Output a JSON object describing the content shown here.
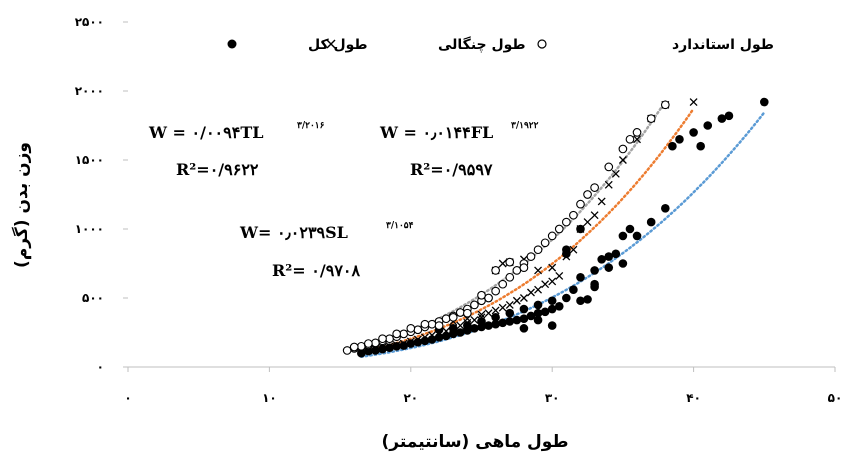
{
  "chart_data": {
    "type": "scatter",
    "xlabel": "طول ماهی (سانتیمتر)",
    "ylabel": "وزن بدن (گرم)",
    "xlim": [
      0,
      50
    ],
    "ylim": [
      0,
      2500
    ],
    "x_ticks": [
      0,
      10,
      20,
      30,
      40,
      50
    ],
    "y_ticks": [
      0,
      500,
      1000,
      1500,
      2000,
      2500
    ],
    "x_tick_labels": [
      "۰",
      "۱۰",
      "۲۰",
      "۳۰",
      "۴۰",
      "۵۰"
    ],
    "y_tick_labels": [
      "۰",
      "۵۰۰",
      "۱۰۰۰",
      "۱۵۰۰",
      "۲۰۰۰",
      "۲۵۰۰"
    ],
    "grid": false,
    "legend_position": "top",
    "legend": [
      {
        "label": "طول کل",
        "marker": "filled-circle"
      },
      {
        "label": "طول چنگالی",
        "marker": "x"
      },
      {
        "label": "طول استاندارد",
        "marker": "open-circle"
      }
    ],
    "series": [
      {
        "name": "طول کل",
        "marker": "filled-circle",
        "color": "#000000",
        "trend_color": "#5b9bd5",
        "fit": {
          "a": 0.0094,
          "b": 3.2016
        },
        "equation": "W = ۰/۰۰۹۴TL",
        "exponent": "۳/۲۰۱۶",
        "r2": "R²=۰/۹۶۲۲",
        "points": [
          [
            16.5,
            100
          ],
          [
            17,
            115
          ],
          [
            17.5,
            120
          ],
          [
            18,
            130
          ],
          [
            18.5,
            140
          ],
          [
            19,
            150
          ],
          [
            19.5,
            155
          ],
          [
            20,
            170
          ],
          [
            20.5,
            180
          ],
          [
            21,
            190
          ],
          [
            21.5,
            200
          ],
          [
            22,
            215
          ],
          [
            22.5,
            225
          ],
          [
            23,
            240
          ],
          [
            23.5,
            250
          ],
          [
            24,
            265
          ],
          [
            24.5,
            280
          ],
          [
            25,
            290
          ],
          [
            25.5,
            300
          ],
          [
            26,
            310
          ],
          [
            26.5,
            320
          ],
          [
            27,
            330
          ],
          [
            27.5,
            340
          ],
          [
            28,
            350
          ],
          [
            28.5,
            370
          ],
          [
            29,
            390
          ],
          [
            29.5,
            400
          ],
          [
            30,
            420
          ],
          [
            30.5,
            440
          ],
          [
            31,
            500
          ],
          [
            31.5,
            560
          ],
          [
            32,
            480
          ],
          [
            32.5,
            490
          ],
          [
            33,
            600
          ],
          [
            33.5,
            780
          ],
          [
            34,
            800
          ],
          [
            34.5,
            820
          ],
          [
            35,
            950
          ],
          [
            35.5,
            1000
          ],
          [
            36,
            950
          ],
          [
            37,
            1050
          ],
          [
            38,
            1150
          ],
          [
            38.5,
            1600
          ],
          [
            39,
            1650
          ],
          [
            40,
            1700
          ],
          [
            40.5,
            1600
          ],
          [
            41,
            1750
          ],
          [
            42,
            1800
          ],
          [
            42.5,
            1820
          ],
          [
            45,
            1920
          ],
          [
            22,
            270
          ],
          [
            23,
            280
          ],
          [
            24,
            300
          ],
          [
            25,
            330
          ],
          [
            26,
            360
          ],
          [
            27,
            390
          ],
          [
            28,
            420
          ],
          [
            29,
            450
          ],
          [
            30,
            480
          ],
          [
            31,
            820
          ],
          [
            32,
            650
          ],
          [
            33,
            700
          ],
          [
            34,
            720
          ],
          [
            35,
            750
          ],
          [
            31,
            850
          ],
          [
            32,
            1000
          ],
          [
            33,
            580
          ],
          [
            30,
            300
          ],
          [
            29,
            340
          ],
          [
            28,
            280
          ]
        ]
      },
      {
        "name": "طول چنگالی",
        "marker": "x",
        "color": "#000000",
        "trend_color": "#ed7d31",
        "fit": {
          "a": 0.0144,
          "b": 3.1922
        },
        "equation": "W = ۰٫۰۱۴۴FL",
        "exponent": "۳/۱۹۲۲",
        "r2": "R²=۰/۹۵۹۷",
        "points": [
          [
            16.5,
            110
          ],
          [
            17,
            120
          ],
          [
            17.5,
            130
          ],
          [
            18,
            140
          ],
          [
            18.5,
            150
          ],
          [
            19,
            160
          ],
          [
            19.5,
            170
          ],
          [
            20,
            185
          ],
          [
            20.5,
            200
          ],
          [
            21,
            215
          ],
          [
            21.5,
            230
          ],
          [
            22,
            245
          ],
          [
            22.5,
            260
          ],
          [
            23,
            280
          ],
          [
            23.5,
            300
          ],
          [
            24,
            320
          ],
          [
            24.5,
            340
          ],
          [
            25,
            360
          ],
          [
            25.5,
            390
          ],
          [
            26,
            410
          ],
          [
            26.5,
            430
          ],
          [
            27,
            450
          ],
          [
            27.5,
            480
          ],
          [
            28,
            500
          ],
          [
            28.5,
            540
          ],
          [
            29,
            560
          ],
          [
            29.5,
            600
          ],
          [
            30,
            620
          ],
          [
            30.5,
            660
          ],
          [
            31,
            800
          ],
          [
            31.5,
            850
          ],
          [
            32,
            1000
          ],
          [
            32.5,
            1050
          ],
          [
            33,
            1100
          ],
          [
            33.5,
            1200
          ],
          [
            34,
            1320
          ],
          [
            34.5,
            1400
          ],
          [
            35,
            1500
          ],
          [
            36,
            1650
          ],
          [
            37,
            1800
          ],
          [
            38,
            1900
          ],
          [
            40,
            1920
          ],
          [
            23,
            330
          ],
          [
            24,
            350
          ],
          [
            25,
            380
          ],
          [
            26,
            700
          ],
          [
            26.5,
            750
          ],
          [
            27,
            760
          ],
          [
            28,
            780
          ],
          [
            29,
            700
          ],
          [
            30,
            720
          ]
        ]
      },
      {
        "name": "طول استاندارد",
        "marker": "open-circle",
        "color": "#000000",
        "trend_color": "#a5a5a5",
        "fit": {
          "a": 0.0239,
          "b": 3.1054
        },
        "equation": "W= ۰٫۰۲۳۹SL",
        "exponent": "۳/۱۰۵۴",
        "r2": "R²= ۰/۹۷۰۸",
        "points": [
          [
            15.5,
            120
          ],
          [
            16,
            135
          ],
          [
            16.5,
            150
          ],
          [
            17,
            160
          ],
          [
            17.5,
            175
          ],
          [
            18,
            190
          ],
          [
            18.5,
            205
          ],
          [
            19,
            220
          ],
          [
            19.5,
            240
          ],
          [
            20,
            255
          ],
          [
            20.5,
            270
          ],
          [
            21,
            290
          ],
          [
            21.5,
            310
          ],
          [
            22,
            330
          ],
          [
            22.5,
            350
          ],
          [
            23,
            370
          ],
          [
            23.5,
            395
          ],
          [
            24,
            420
          ],
          [
            24.5,
            450
          ],
          [
            25,
            480
          ],
          [
            25.5,
            500
          ],
          [
            26,
            550
          ],
          [
            26.5,
            600
          ],
          [
            27,
            650
          ],
          [
            27.5,
            700
          ],
          [
            28,
            750
          ],
          [
            28.5,
            800
          ],
          [
            29,
            850
          ],
          [
            29.5,
            900
          ],
          [
            30,
            950
          ],
          [
            30.5,
            1000
          ],
          [
            31,
            1050
          ],
          [
            31.5,
            1100
          ],
          [
            32,
            1180
          ],
          [
            32.5,
            1250
          ],
          [
            33,
            1300
          ],
          [
            34,
            1450
          ],
          [
            35,
            1580
          ],
          [
            35.5,
            1650
          ],
          [
            36,
            1700
          ],
          [
            37,
            1800
          ],
          [
            38,
            1900
          ],
          [
            16,
            145
          ],
          [
            17,
            170
          ],
          [
            18,
            205
          ],
          [
            19,
            240
          ],
          [
            20,
            280
          ],
          [
            21,
            310
          ],
          [
            22,
            300
          ],
          [
            23,
            360
          ],
          [
            24,
            390
          ],
          [
            25,
            520
          ],
          [
            26,
            700
          ],
          [
            27,
            760
          ],
          [
            28,
            720
          ]
        ]
      }
    ]
  }
}
